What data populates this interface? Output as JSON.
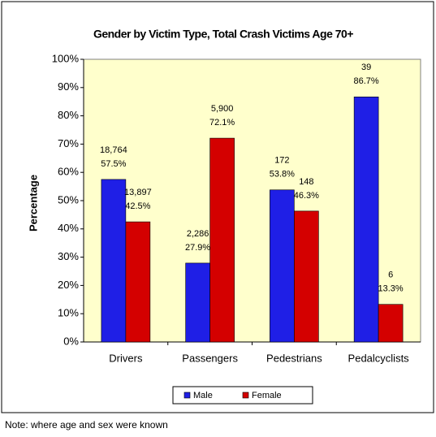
{
  "chart_data": {
    "type": "bar",
    "title": "Gender by Victim Type, Total Crash Victims Age 70+",
    "y_label": "Percentage",
    "note": "Note: where age and sex were known",
    "categories": [
      "Drivers",
      "Passengers",
      "Pedestrians",
      "Pedalcyclists"
    ],
    "series": [
      {
        "name": "Male",
        "color": "#1f1fe6",
        "values": [
          57.5,
          27.9,
          53.8,
          86.7
        ],
        "value_labels": [
          "57.5%",
          "27.9%",
          "53.8%",
          "86.7%"
        ],
        "count_labels": [
          "18,764",
          "2,286",
          "172",
          "39"
        ]
      },
      {
        "name": "Female",
        "color": "#d40000",
        "values": [
          42.5,
          72.1,
          46.3,
          13.3
        ],
        "value_labels": [
          "42.5%",
          "72.1%",
          "46.3%",
          "13.3%"
        ],
        "count_labels": [
          "13,897",
          "5,900",
          "148",
          "6"
        ]
      }
    ],
    "ylim": [
      0,
      100
    ],
    "yticks": [
      {
        "value": 0,
        "label": "0%"
      },
      {
        "value": 10,
        "label": "10%"
      },
      {
        "value": 20,
        "label": "20%"
      },
      {
        "value": 30,
        "label": "30%"
      },
      {
        "value": 40,
        "label": "40%"
      },
      {
        "value": 50,
        "label": "50%"
      },
      {
        "value": 60,
        "label": "60%"
      },
      {
        "value": 70,
        "label": "70%"
      },
      {
        "value": 80,
        "label": "80%"
      },
      {
        "value": 90,
        "label": "90%"
      },
      {
        "value": 100,
        "label": "100%"
      }
    ],
    "grid": false,
    "legend": "bottom",
    "background": "#ffffcc"
  }
}
